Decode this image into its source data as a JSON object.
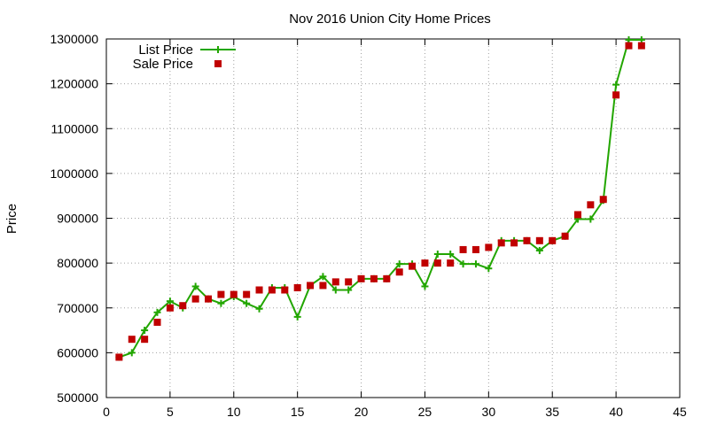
{
  "chart_data": {
    "type": "line",
    "title": "Nov 2016 Union City Home Prices",
    "xlabel": "",
    "ylabel": "Price",
    "xlim": [
      0,
      45
    ],
    "ylim": [
      500000,
      1300000
    ],
    "x_ticks": [
      0,
      5,
      10,
      15,
      20,
      25,
      30,
      35,
      40,
      45
    ],
    "y_ticks": [
      500000,
      600000,
      700000,
      800000,
      900000,
      1000000,
      1100000,
      1200000,
      1300000
    ],
    "grid": true,
    "legend_position": "top-left",
    "series": [
      {
        "name": "List Price",
        "style": "line-with-plus-markers",
        "color": "#22a600",
        "x": [
          1,
          2,
          3,
          4,
          5,
          6,
          7,
          8,
          9,
          10,
          11,
          12,
          13,
          14,
          15,
          16,
          17,
          18,
          19,
          20,
          21,
          22,
          23,
          24,
          25,
          26,
          27,
          28,
          29,
          30,
          31,
          32,
          33,
          34,
          35,
          36,
          37,
          38,
          39,
          40,
          41,
          42
        ],
        "y": [
          590000,
          600000,
          650000,
          690000,
          715000,
          700000,
          748000,
          720000,
          710000,
          725000,
          710000,
          698000,
          745000,
          745000,
          680000,
          750000,
          770000,
          740000,
          740000,
          765000,
          765000,
          765000,
          798000,
          798000,
          748000,
          820000,
          820000,
          798000,
          798000,
          788000,
          850000,
          850000,
          850000,
          828000,
          850000,
          860000,
          898000,
          898000,
          940000,
          1198000,
          1298000,
          1298000
        ]
      },
      {
        "name": "Sale Price",
        "style": "square-markers",
        "color": "#c00000",
        "x": [
          1,
          2,
          3,
          4,
          5,
          6,
          7,
          8,
          9,
          10,
          11,
          12,
          13,
          14,
          15,
          16,
          17,
          18,
          19,
          20,
          21,
          22,
          23,
          24,
          25,
          26,
          27,
          28,
          29,
          30,
          31,
          32,
          33,
          34,
          35,
          36,
          37,
          38,
          39,
          40,
          41,
          42
        ],
        "y": [
          590000,
          630000,
          630000,
          668000,
          700000,
          705000,
          720000,
          720000,
          730000,
          730000,
          730000,
          740000,
          740000,
          740000,
          745000,
          750000,
          750000,
          758000,
          758000,
          765000,
          765000,
          765000,
          780000,
          793000,
          800000,
          800000,
          800000,
          830000,
          830000,
          835000,
          845000,
          845000,
          850000,
          850000,
          850000,
          860000,
          908000,
          930000,
          942000,
          1175000,
          1285000,
          1285000
        ]
      }
    ]
  }
}
